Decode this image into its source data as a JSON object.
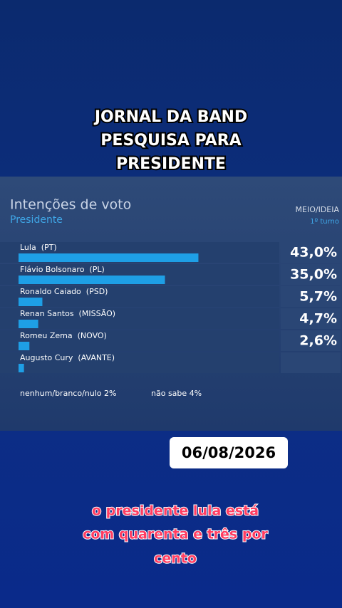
{
  "overlay_title": [
    "JORNAL DA BAND",
    "PESQUISA PARA",
    "PRESIDENTE"
  ],
  "chart_data": {
    "type": "bar",
    "orientation": "horizontal",
    "title": "Intenções de voto",
    "subtitle": "Presidente",
    "source": "MEIO/IDEIA",
    "round": "1º turno",
    "categories": [
      "Lula  (PT)",
      "Flávio Bolsonaro  (PL)",
      "Ronaldo Caiado  (PSD)",
      "Renan Santos  (MISSÃO)",
      "Romeu Zema  (NOVO)",
      "Augusto Cury  (AVANTE)"
    ],
    "values": [
      43.0,
      35.0,
      5.7,
      4.7,
      2.6,
      1.3
    ],
    "value_labels": [
      "43,0%",
      "35,0%",
      "5,7%",
      "4,7%",
      "2,6%",
      null
    ],
    "color": "#1e9fe6",
    "xlim": [
      0,
      62
    ],
    "notes": [
      "nenhum/branco/nulo 2%",
      "não sabe 4%"
    ]
  },
  "date": "06/08/2026",
  "caption": [
    "o presidente lula está",
    "com quarenta e três por",
    "cento"
  ]
}
